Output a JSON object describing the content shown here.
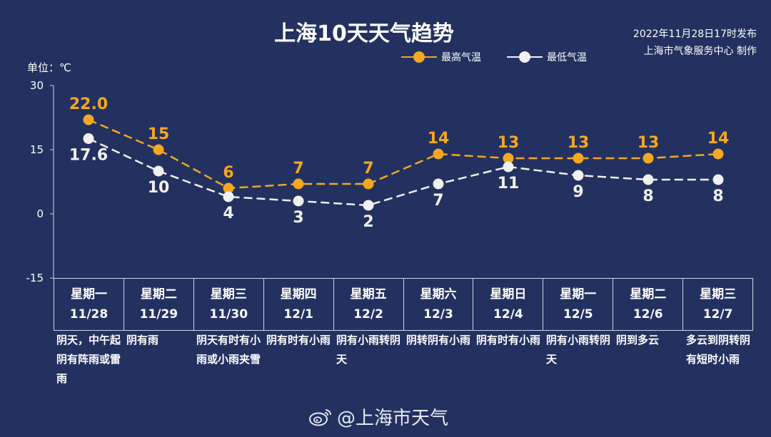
{
  "title": "上海10天天气趋势",
  "issued": "2022年11月28日17时发布",
  "producer": "上海市气象服务中心 制作",
  "unit_label": "单位：℃",
  "watermark": "@上海市天气",
  "legend": [
    {
      "label": "最高气温",
      "color": "#f5a623"
    },
    {
      "label": "最低气温",
      "color": "#f1f1f1"
    }
  ],
  "days": [
    {
      "weekday": "星期一",
      "date": "11/28",
      "desc": "阴天，中午起阴有阵雨或雷雨"
    },
    {
      "weekday": "星期二",
      "date": "11/29",
      "desc": "阴有雨"
    },
    {
      "weekday": "星期三",
      "date": "11/30",
      "desc": "阴天有时有小雨或小雨夹雪"
    },
    {
      "weekday": "星期四",
      "date": "12/1",
      "desc": "阴有时有小雨"
    },
    {
      "weekday": "星期五",
      "date": "12/2",
      "desc": "阴有小雨转阴天"
    },
    {
      "weekday": "星期六",
      "date": "12/3",
      "desc": "阴转阴有小雨"
    },
    {
      "weekday": "星期日",
      "date": "12/4",
      "desc": "阴有时有小雨"
    },
    {
      "weekday": "星期一",
      "date": "12/5",
      "desc": "阴有小雨转阴天"
    },
    {
      "weekday": "星期二",
      "date": "12/6",
      "desc": "阴到多云"
    },
    {
      "weekday": "星期三",
      "date": "12/7",
      "desc": "多云到阴转阴有短时小雨"
    }
  ],
  "chart_data": {
    "type": "line",
    "title": "上海10天天气趋势",
    "ylabel": "单位：℃",
    "ylim": [
      -15,
      30
    ],
    "yticks": [
      "30",
      "15",
      "0",
      "-15"
    ],
    "categories": [
      "11/28",
      "11/29",
      "11/30",
      "12/1",
      "12/2",
      "12/3",
      "12/4",
      "12/5",
      "12/6",
      "12/7"
    ],
    "series": [
      {
        "name": "最高气温",
        "color": "#f5a623",
        "values": [
          22.0,
          15,
          6,
          7,
          7,
          14,
          13,
          13,
          13,
          14
        ],
        "labels": [
          "22.0",
          "15",
          "6",
          "7",
          "7",
          "14",
          "13",
          "13",
          "13",
          "14"
        ]
      },
      {
        "name": "最低气温",
        "color": "#f1f1f1",
        "values": [
          17.6,
          10,
          4,
          3,
          2,
          7,
          11,
          9,
          8,
          8
        ],
        "labels": [
          "17.6",
          "10",
          "4",
          "3",
          "2",
          "7",
          "11",
          "9",
          "8",
          "8"
        ]
      }
    ],
    "grid": false,
    "legend_position": "top-right"
  }
}
